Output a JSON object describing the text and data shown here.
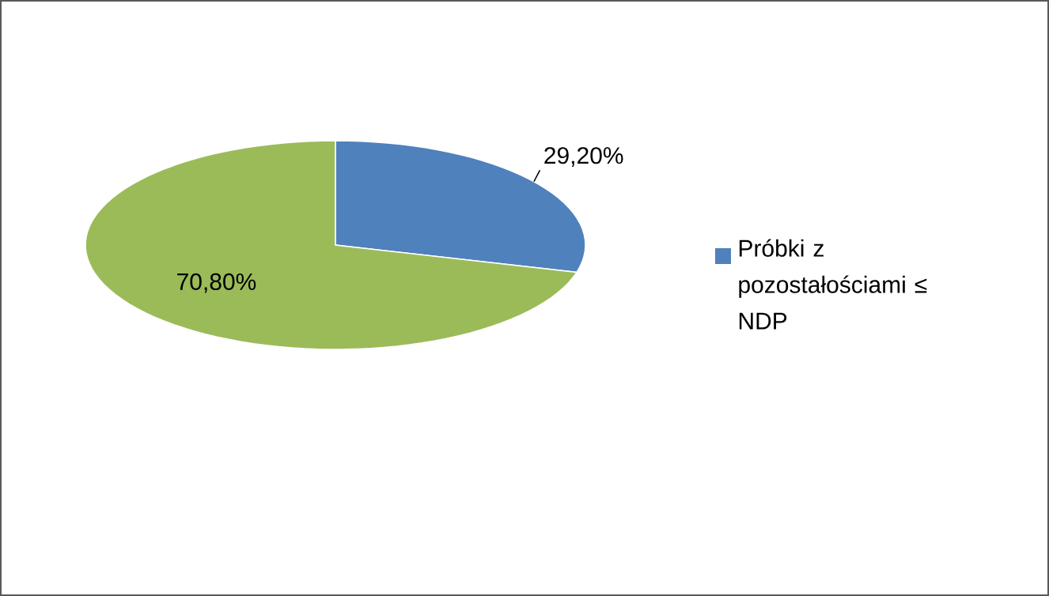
{
  "chart_data": {
    "type": "pie",
    "categories": [
      "Próbki z pozostałościami ≤ NDP",
      null
    ],
    "values": [
      29.2,
      70.8
    ],
    "colors": [
      "#4f81bd",
      "#9bbb59"
    ],
    "value_labels": [
      "29,20%",
      "70,80%"
    ],
    "legend": "right"
  }
}
